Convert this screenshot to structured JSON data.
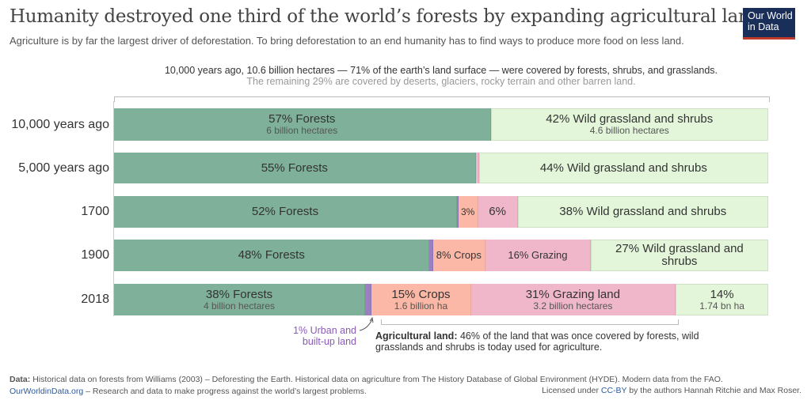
{
  "title": "Humanity destroyed one third of the world’s forests by expanding agricultural land",
  "subtitle": "Agriculture is by far the largest driver of deforestation. To bring deforestation to an end humanity has to find ways to produce more food on less land.",
  "logo": {
    "line1": "Our World",
    "line2": "in Data"
  },
  "top_note": {
    "line1": "10,000 years ago, 10.6 billion hectares — 71% of the earth’s land surface — were covered by forests, shrubs, and grasslands.",
    "line2": "The remaining 29% are covered by deserts, glaciers, rocky terrain and other barren land."
  },
  "colors": {
    "forests": "#7fb09a",
    "wild": "#e3f6da",
    "crops": "#fbb8a6",
    "grazing": "#f0b7cb",
    "urban": "#9a7fc1"
  },
  "chart_data": {
    "type": "bar",
    "orientation": "horizontal",
    "stacked": true,
    "categories": [
      "10,000 years ago",
      "5,000 years ago",
      "1700",
      "1900",
      "2018"
    ],
    "series": [
      {
        "name": "Forests",
        "values": [
          57,
          55,
          52,
          48,
          38
        ],
        "labels": [
          "57% Forests",
          "55% Forests",
          "52% Forests",
          "48% Forests",
          "38% Forests"
        ],
        "sublabels": [
          "6 billion hectares",
          "",
          "",
          "",
          "4 billion hectares"
        ]
      },
      {
        "name": "Urban and built-up land",
        "values": [
          0,
          0,
          0.2,
          0.5,
          1
        ]
      },
      {
        "name": "Crops",
        "values": [
          0,
          0,
          3,
          8,
          15
        ],
        "labels": [
          "",
          "",
          "3%",
          "8% Crops",
          "15% Crops"
        ],
        "sublabels": [
          "",
          "",
          "",
          "",
          "1.6 billion ha"
        ]
      },
      {
        "name": "Grazing",
        "values": [
          0,
          0.5,
          6,
          16,
          31
        ],
        "labels": [
          "",
          "",
          "6%",
          "16% Grazing",
          "31% Grazing land"
        ],
        "sublabels": [
          "",
          "",
          "",
          "",
          "3.2 billion hectares"
        ]
      },
      {
        "name": "Wild grassland and shrubs",
        "values": [
          42,
          44,
          38,
          27,
          14
        ],
        "labels": [
          "42% Wild grassland and shrubs",
          "44% Wild grassland and shrubs",
          "38% Wild grassland and shrubs",
          "27% Wild grassland and shrubs",
          "14%"
        ],
        "sublabels": [
          "4.6 billion hectares",
          "",
          "",
          "",
          "1.74 bn ha"
        ]
      }
    ]
  },
  "annotations": {
    "urban": "1% Urban and built-up land",
    "agri_bold": "Agricultural land:",
    "agri_text": "46% of the land that was once covered by forests, wild grasslands and shrubs is today used for agriculture."
  },
  "footer": {
    "data_label": "Data:",
    "data_text": "Historical data on forests from Williams (2003) – Deforesting the Earth. Historical data on agriculture from The History Database of Global Environment (HYDE). Modern data from the FAO.",
    "site": "OurWorldinData.org",
    "site_text": "– Research and data to make progress against the world’s largest problems.",
    "license_pre": "Licensed under",
    "license": "CC-BY",
    "license_post": "by the authors Hannah Ritchie and Max Roser."
  }
}
